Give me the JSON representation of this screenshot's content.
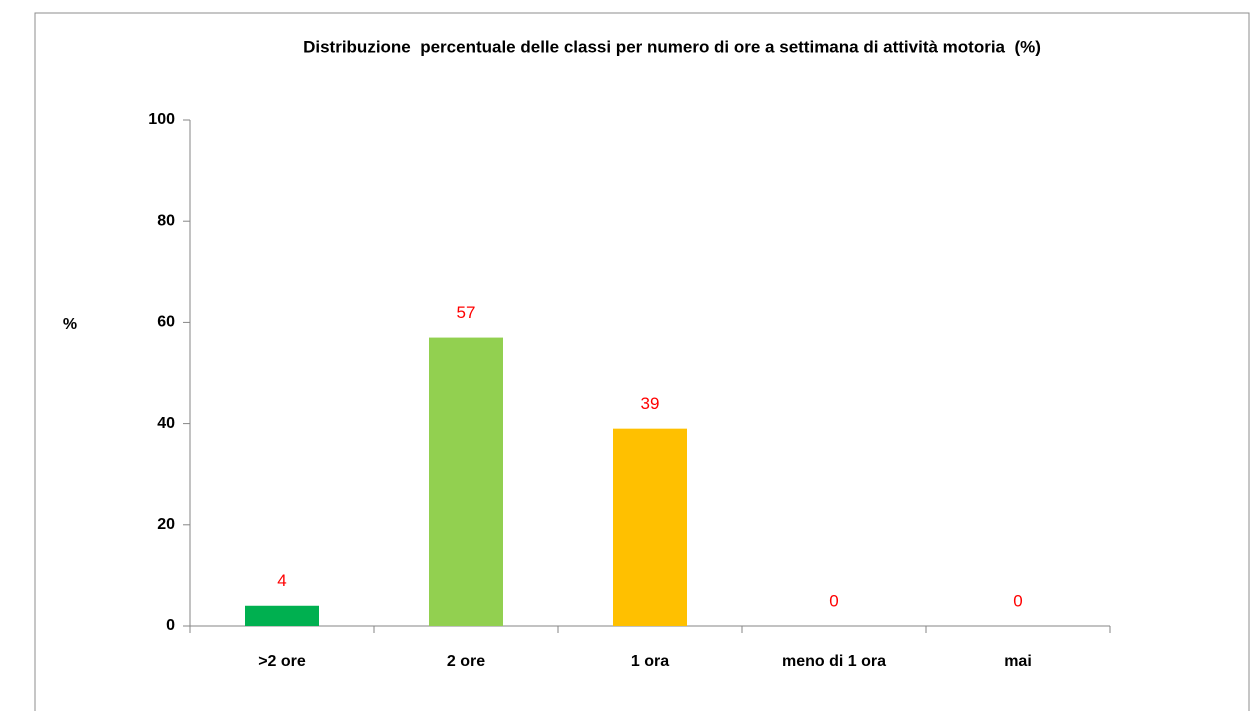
{
  "chart_data": {
    "type": "bar",
    "title": "Distribuzione  percentuale delle classi per numero di ore a settimana di attività motoria  (%)",
    "y_label": "%",
    "categories": [
      ">2 ore",
      "2 ore",
      "1 ora",
      "meno di 1 ora",
      "mai"
    ],
    "values": [
      4,
      57,
      39,
      0,
      0
    ],
    "colors": [
      "#00b050",
      "#92d050",
      "#ffc000",
      "#ff6600",
      "#ff0000"
    ],
    "value_label_color": "#ff0000",
    "ylim": [
      0,
      100
    ],
    "yticks": [
      0,
      20,
      40,
      60,
      80,
      100
    ],
    "grid": false
  }
}
